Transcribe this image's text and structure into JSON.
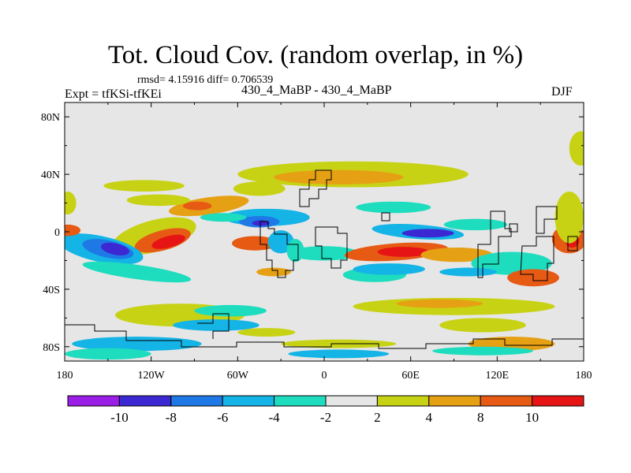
{
  "chart_data": {
    "type": "heatmap",
    "title": "Tot. Cloud Cov. (random overlap, in %)",
    "stats_text": "rmsd= 4.15916 diff= 0.706539",
    "left_label": "Expt = tfKSi-tfKEi",
    "center_label": "430_4_MaBP - 430_4_MaBP",
    "right_label": "DJF",
    "xlim": [
      -180,
      180
    ],
    "ylim": [
      -90,
      90
    ],
    "x_ticks": [
      {
        "value": -180,
        "label": "180"
      },
      {
        "value": -120,
        "label": "120W"
      },
      {
        "value": -60,
        "label": "60W"
      },
      {
        "value": 0,
        "label": "0"
      },
      {
        "value": 60,
        "label": "60E"
      },
      {
        "value": 120,
        "label": "120E"
      },
      {
        "value": 180,
        "label": "180"
      }
    ],
    "y_ticks": [
      {
        "value": 80,
        "label": "80N"
      },
      {
        "value": 40,
        "label": "40N"
      },
      {
        "value": 0,
        "label": "0"
      },
      {
        "value": -40,
        "label": "40S"
      },
      {
        "value": -80,
        "label": "80S"
      }
    ],
    "colorbar": {
      "boundaries": [
        -10,
        -8,
        -6,
        -4,
        -2,
        2,
        4,
        8,
        10
      ],
      "labels": [
        "-10",
        "-8",
        "-6",
        "-4",
        "-2",
        "2",
        "4",
        "8",
        "10"
      ],
      "colors": [
        "#9b1ee6",
        "#3c28d2",
        "#1e78e6",
        "#14b4e6",
        "#1edcbe",
        "#e6e6e6",
        "#c8d214",
        "#e6a014",
        "#e65a14",
        "#e61414"
      ]
    },
    "fields": [
      {
        "lon": -118,
        "lat": -3,
        "rx": 30,
        "ry": 11,
        "level": 6,
        "rot": -15
      },
      {
        "lon": -112,
        "lat": -6,
        "rx": 20,
        "ry": 7,
        "level": 8,
        "rot": -15
      },
      {
        "lon": -108,
        "lat": -7,
        "rx": 12,
        "ry": 4,
        "level": 9,
        "rot": -15
      },
      {
        "lon": -155,
        "lat": -12,
        "rx": 30,
        "ry": 9,
        "level": 3,
        "rot": 12
      },
      {
        "lon": -150,
        "lat": -12,
        "rx": 18,
        "ry": 6,
        "level": 2,
        "rot": 12
      },
      {
        "lon": -145,
        "lat": -12,
        "rx": 10,
        "ry": 4,
        "level": 1,
        "rot": 12
      },
      {
        "lon": -130,
        "lat": -28,
        "rx": 38,
        "ry": 5,
        "level": 4,
        "rot": 8
      },
      {
        "lon": -178,
        "lat": 1,
        "rx": 9,
        "ry": 4,
        "level": 8
      },
      {
        "lon": -80,
        "lat": 18,
        "rx": 28,
        "ry": 6,
        "level": 7,
        "rot": -8
      },
      {
        "lon": -88,
        "lat": 18,
        "rx": 10,
        "ry": 3,
        "level": 8
      },
      {
        "lon": -115,
        "lat": 22,
        "rx": 22,
        "ry": 4,
        "level": 6
      },
      {
        "lon": -45,
        "lat": 30,
        "rx": 18,
        "ry": 5,
        "level": 6
      },
      {
        "lon": -125,
        "lat": 32,
        "rx": 28,
        "ry": 4,
        "level": 6
      },
      {
        "lon": -40,
        "lat": 10,
        "rx": 30,
        "ry": 6,
        "level": 3
      },
      {
        "lon": -45,
        "lat": 7,
        "rx": 14,
        "ry": 4,
        "level": 2
      },
      {
        "lon": -44,
        "lat": 6,
        "rx": 6,
        "ry": 2,
        "level": 1
      },
      {
        "lon": -70,
        "lat": 10,
        "rx": 16,
        "ry": 3,
        "level": 4
      },
      {
        "lon": -48,
        "lat": -8,
        "rx": 16,
        "ry": 5,
        "level": 8
      },
      {
        "lon": -30,
        "lat": -7,
        "rx": 9,
        "ry": 8,
        "level": 3
      },
      {
        "lon": -20,
        "lat": -13,
        "rx": 6,
        "ry": 8,
        "level": 4
      },
      {
        "lon": -35,
        "lat": -28,
        "rx": 12,
        "ry": 3,
        "level": 7
      },
      {
        "lon": 0,
        "lat": -15,
        "rx": 24,
        "ry": 5,
        "level": 4
      },
      {
        "lon": 48,
        "lat": 17,
        "rx": 26,
        "ry": 4,
        "level": 4
      },
      {
        "lon": 20,
        "lat": 40,
        "rx": 80,
        "ry": 9,
        "level": 6
      },
      {
        "lon": 10,
        "lat": 38,
        "rx": 45,
        "ry": 5,
        "level": 7
      },
      {
        "lon": 65,
        "lat": 0,
        "rx": 32,
        "ry": 5,
        "level": 3,
        "rot": 4
      },
      {
        "lon": 72,
        "lat": -1,
        "rx": 18,
        "ry": 3,
        "level": 1
      },
      {
        "lon": 105,
        "lat": 5,
        "rx": 22,
        "ry": 4,
        "level": 4
      },
      {
        "lon": 50,
        "lat": -14,
        "rx": 36,
        "ry": 6,
        "level": 8,
        "rot": -4
      },
      {
        "lon": 55,
        "lat": -14,
        "rx": 18,
        "ry": 3.5,
        "level": 9
      },
      {
        "lon": 92,
        "lat": -16,
        "rx": 25,
        "ry": 5,
        "level": 7
      },
      {
        "lon": 130,
        "lat": -22,
        "rx": 28,
        "ry": 8,
        "level": 4
      },
      {
        "lon": 145,
        "lat": -32,
        "rx": 18,
        "ry": 6,
        "level": 8
      },
      {
        "lon": 170,
        "lat": -5,
        "rx": 12,
        "ry": 10,
        "level": 8
      },
      {
        "lon": 172,
        "lat": -6,
        "rx": 5,
        "ry": 5,
        "level": 9
      },
      {
        "lon": 35,
        "lat": -30,
        "rx": 22,
        "ry": 5,
        "level": 4
      },
      {
        "lon": 45,
        "lat": -26,
        "rx": 25,
        "ry": 4,
        "level": 3
      },
      {
        "lon": 100,
        "lat": -28,
        "rx": 20,
        "ry": 3,
        "level": 3
      },
      {
        "lon": 90,
        "lat": -52,
        "rx": 70,
        "ry": 6,
        "level": 6
      },
      {
        "lon": 80,
        "lat": -50,
        "rx": 30,
        "ry": 3,
        "level": 7
      },
      {
        "lon": -100,
        "lat": -58,
        "rx": 45,
        "ry": 8,
        "level": 6
      },
      {
        "lon": -65,
        "lat": -55,
        "rx": 25,
        "ry": 4,
        "level": 4
      },
      {
        "lon": -75,
        "lat": -65,
        "rx": 30,
        "ry": 4,
        "level": 3
      },
      {
        "lon": -40,
        "lat": -70,
        "rx": 20,
        "ry": 3,
        "level": 6
      },
      {
        "lon": 110,
        "lat": -65,
        "rx": 30,
        "ry": 5,
        "level": 6
      },
      {
        "lon": 130,
        "lat": -78,
        "rx": 30,
        "ry": 5,
        "level": 7
      },
      {
        "lon": 10,
        "lat": -78,
        "rx": 40,
        "ry": 3,
        "level": 6
      },
      {
        "lon": -130,
        "lat": -78,
        "rx": 45,
        "ry": 5,
        "level": 3
      },
      {
        "lon": -150,
        "lat": -85,
        "rx": 30,
        "ry": 4,
        "level": 4
      },
      {
        "lon": 10,
        "lat": -85,
        "rx": 35,
        "ry": 3,
        "level": 3
      },
      {
        "lon": 110,
        "lat": -83,
        "rx": 35,
        "ry": 3,
        "level": 4
      },
      {
        "lon": 170,
        "lat": 10,
        "rx": 10,
        "ry": 18,
        "level": 6
      },
      {
        "lon": -178,
        "lat": 20,
        "rx": 6,
        "ry": 8,
        "level": 6
      },
      {
        "lon": 178,
        "lat": 58,
        "rx": 8,
        "ry": 12,
        "level": 6
      }
    ]
  }
}
